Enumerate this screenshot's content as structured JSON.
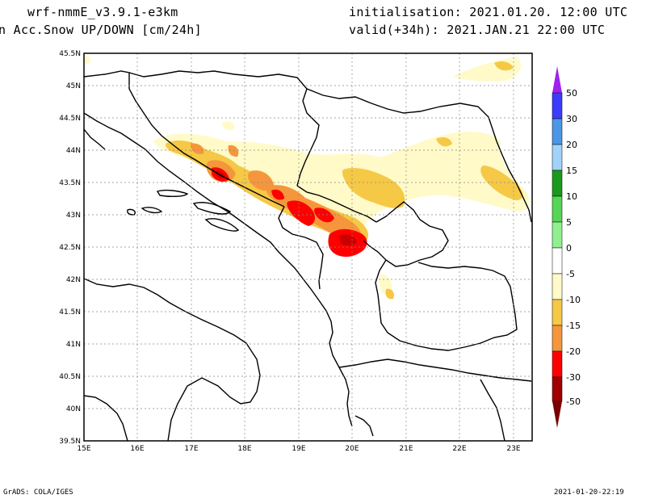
{
  "header": {
    "model": "wrf-nmmE_v3.9.1-e3km",
    "field": "n Acc.Snow UP/DOWN [cm/24h]",
    "init": "initialisation: 2021.01.20.  12:00 UTC",
    "valid": "valid(+34h): 2021.JAN.21 22:00 UTC"
  },
  "map": {
    "lon_ticks": [
      "15E",
      "16E",
      "17E",
      "18E",
      "19E",
      "20E",
      "21E",
      "22E",
      "23E"
    ],
    "lat_ticks": [
      "45.5N",
      "45N",
      "44.5N",
      "44N",
      "43.5N",
      "43N",
      "42.5N",
      "42N",
      "41.5N",
      "41N",
      "40.5N",
      "40N",
      "39.5N"
    ],
    "grid": true
  },
  "legend": {
    "labels": [
      "50",
      "30",
      "20",
      "15",
      "10",
      "5",
      "0",
      "-5",
      "-10",
      "-15",
      "-20",
      "-30",
      "-50"
    ],
    "colors": [
      "#a020f0",
      "#3c3cff",
      "#4b96e6",
      "#a0d2fa",
      "#1a9a1a",
      "#55d655",
      "#90f090",
      "#ffffff",
      "#ffffff",
      "#fffac8",
      "#f5c846",
      "#f5963c",
      "#ff0000",
      "#cc0000",
      "#a00000",
      "#780000"
    ]
  },
  "footer": {
    "credit": "GrADS: COLA/IGES",
    "timestamp": "2021-01-20-22:19"
  }
}
